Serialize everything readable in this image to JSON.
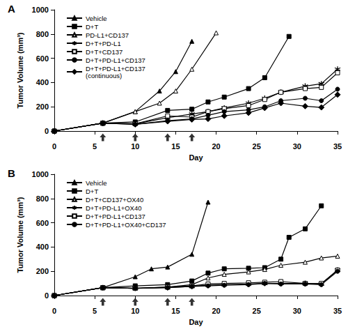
{
  "chart_data": [
    {
      "type": "line",
      "title": "A",
      "x_label": "Day",
      "y_label": "Tumor Volume (mm³)",
      "xlim": [
        0,
        35
      ],
      "xticks": [
        0,
        5,
        10,
        15,
        20,
        25,
        30,
        35
      ],
      "ylim": [
        0,
        1000
      ],
      "yticks": [
        0,
        200,
        400,
        600,
        800,
        1000
      ],
      "grid": false,
      "legend": "top-left",
      "color": "#000000",
      "dosing_days": [
        6,
        10,
        14,
        17
      ],
      "series": [
        {
          "name": "Vehicle",
          "marker": "triangle",
          "x": [
            0,
            6,
            10,
            13,
            15,
            17
          ],
          "values": [
            0,
            65,
            160,
            330,
            490,
            740
          ]
        },
        {
          "name": "D+T",
          "marker": "square",
          "x": [
            0,
            6,
            10,
            14,
            17,
            19,
            21,
            24,
            26,
            29
          ],
          "values": [
            0,
            65,
            75,
            170,
            180,
            240,
            280,
            350,
            440,
            780
          ]
        },
        {
          "name": "PD-L1+CD137",
          "marker": "open_triangle",
          "x": [
            0,
            6,
            10,
            13,
            15,
            17,
            20
          ],
          "values": [
            0,
            65,
            160,
            230,
            330,
            510,
            810
          ]
        },
        {
          "name": "D+T+PD-L1",
          "marker": "asterisk",
          "x": [
            0,
            6,
            10,
            14,
            17,
            19,
            21,
            24,
            26,
            28,
            31,
            33,
            35
          ],
          "values": [
            0,
            65,
            60,
            110,
            140,
            160,
            190,
            230,
            270,
            320,
            370,
            390,
            510
          ]
        },
        {
          "name": "D+T+CD137",
          "marker": "open_square",
          "x": [
            0,
            6,
            10,
            14,
            17,
            19,
            21,
            24,
            26,
            28,
            31,
            33,
            35
          ],
          "values": [
            0,
            65,
            60,
            125,
            115,
            160,
            185,
            210,
            260,
            320,
            350,
            360,
            480
          ]
        },
        {
          "name": "D+T+PD-L1+CD137",
          "marker": "circle",
          "x": [
            0,
            6,
            10,
            14,
            17,
            19,
            21,
            24,
            26,
            28,
            31,
            33,
            35
          ],
          "values": [
            0,
            65,
            55,
            85,
            100,
            130,
            160,
            175,
            200,
            250,
            270,
            250,
            345
          ]
        },
        {
          "name": "D+T+PD-L1+CD137\n(continuous)",
          "marker": "diamond",
          "x": [
            0,
            6,
            10,
            14,
            17,
            19,
            21,
            24,
            26,
            28,
            31,
            33,
            35
          ],
          "values": [
            0,
            65,
            55,
            80,
            95,
            100,
            125,
            150,
            190,
            230,
            205,
            195,
            300
          ]
        }
      ]
    },
    {
      "type": "line",
      "title": "B",
      "x_label": "Day",
      "y_label": "Tumor Volume (mm³)",
      "xlim": [
        0,
        35
      ],
      "xticks": [
        0,
        5,
        10,
        15,
        20,
        25,
        30,
        35
      ],
      "ylim": [
        0,
        1000
      ],
      "yticks": [
        0,
        200,
        400,
        600,
        800,
        1000
      ],
      "grid": false,
      "legend": "top-left",
      "color": "#000000",
      "dosing_days": [
        6,
        10,
        14,
        17
      ],
      "series": [
        {
          "name": "Vehicle",
          "marker": "triangle",
          "x": [
            0,
            6,
            10,
            12,
            14,
            17,
            19
          ],
          "values": [
            0,
            65,
            155,
            220,
            235,
            340,
            770
          ]
        },
        {
          "name": "D+T",
          "marker": "square",
          "x": [
            0,
            6,
            10,
            14,
            17,
            19,
            21,
            24,
            26,
            28,
            29,
            31,
            33
          ],
          "values": [
            0,
            65,
            80,
            90,
            120,
            185,
            220,
            225,
            230,
            300,
            480,
            550,
            740
          ]
        },
        {
          "name": "D+T+CD137+OX40",
          "marker": "open_triangle",
          "x": [
            0,
            6,
            10,
            14,
            17,
            19,
            21,
            24,
            26,
            28,
            31,
            33,
            35
          ],
          "values": [
            0,
            65,
            60,
            70,
            90,
            145,
            175,
            195,
            215,
            250,
            275,
            310,
            325
          ]
        },
        {
          "name": "D+T+PD-L1+OX40",
          "marker": "asterisk",
          "x": [
            0,
            6,
            10,
            14,
            17,
            19,
            21,
            24,
            26,
            28,
            31,
            33,
            35
          ],
          "values": [
            0,
            65,
            60,
            65,
            75,
            85,
            90,
            95,
            100,
            100,
            100,
            95,
            210
          ]
        },
        {
          "name": "D+T+PD-L1+CD137",
          "marker": "open_square",
          "x": [
            0,
            6,
            10,
            14,
            17,
            19,
            21,
            24,
            26,
            28,
            31,
            33,
            35
          ],
          "values": [
            0,
            65,
            60,
            70,
            80,
            95,
            100,
            105,
            110,
            115,
            100,
            100,
            210
          ]
        },
        {
          "name": "D+T+PD-L1+OX40+CD137",
          "marker": "circle",
          "x": [
            0,
            6,
            10,
            14,
            17,
            19,
            21,
            24,
            26,
            28,
            31,
            33,
            35
          ],
          "values": [
            0,
            65,
            60,
            65,
            75,
            80,
            85,
            90,
            100,
            95,
            95,
            90,
            200
          ]
        }
      ]
    }
  ]
}
